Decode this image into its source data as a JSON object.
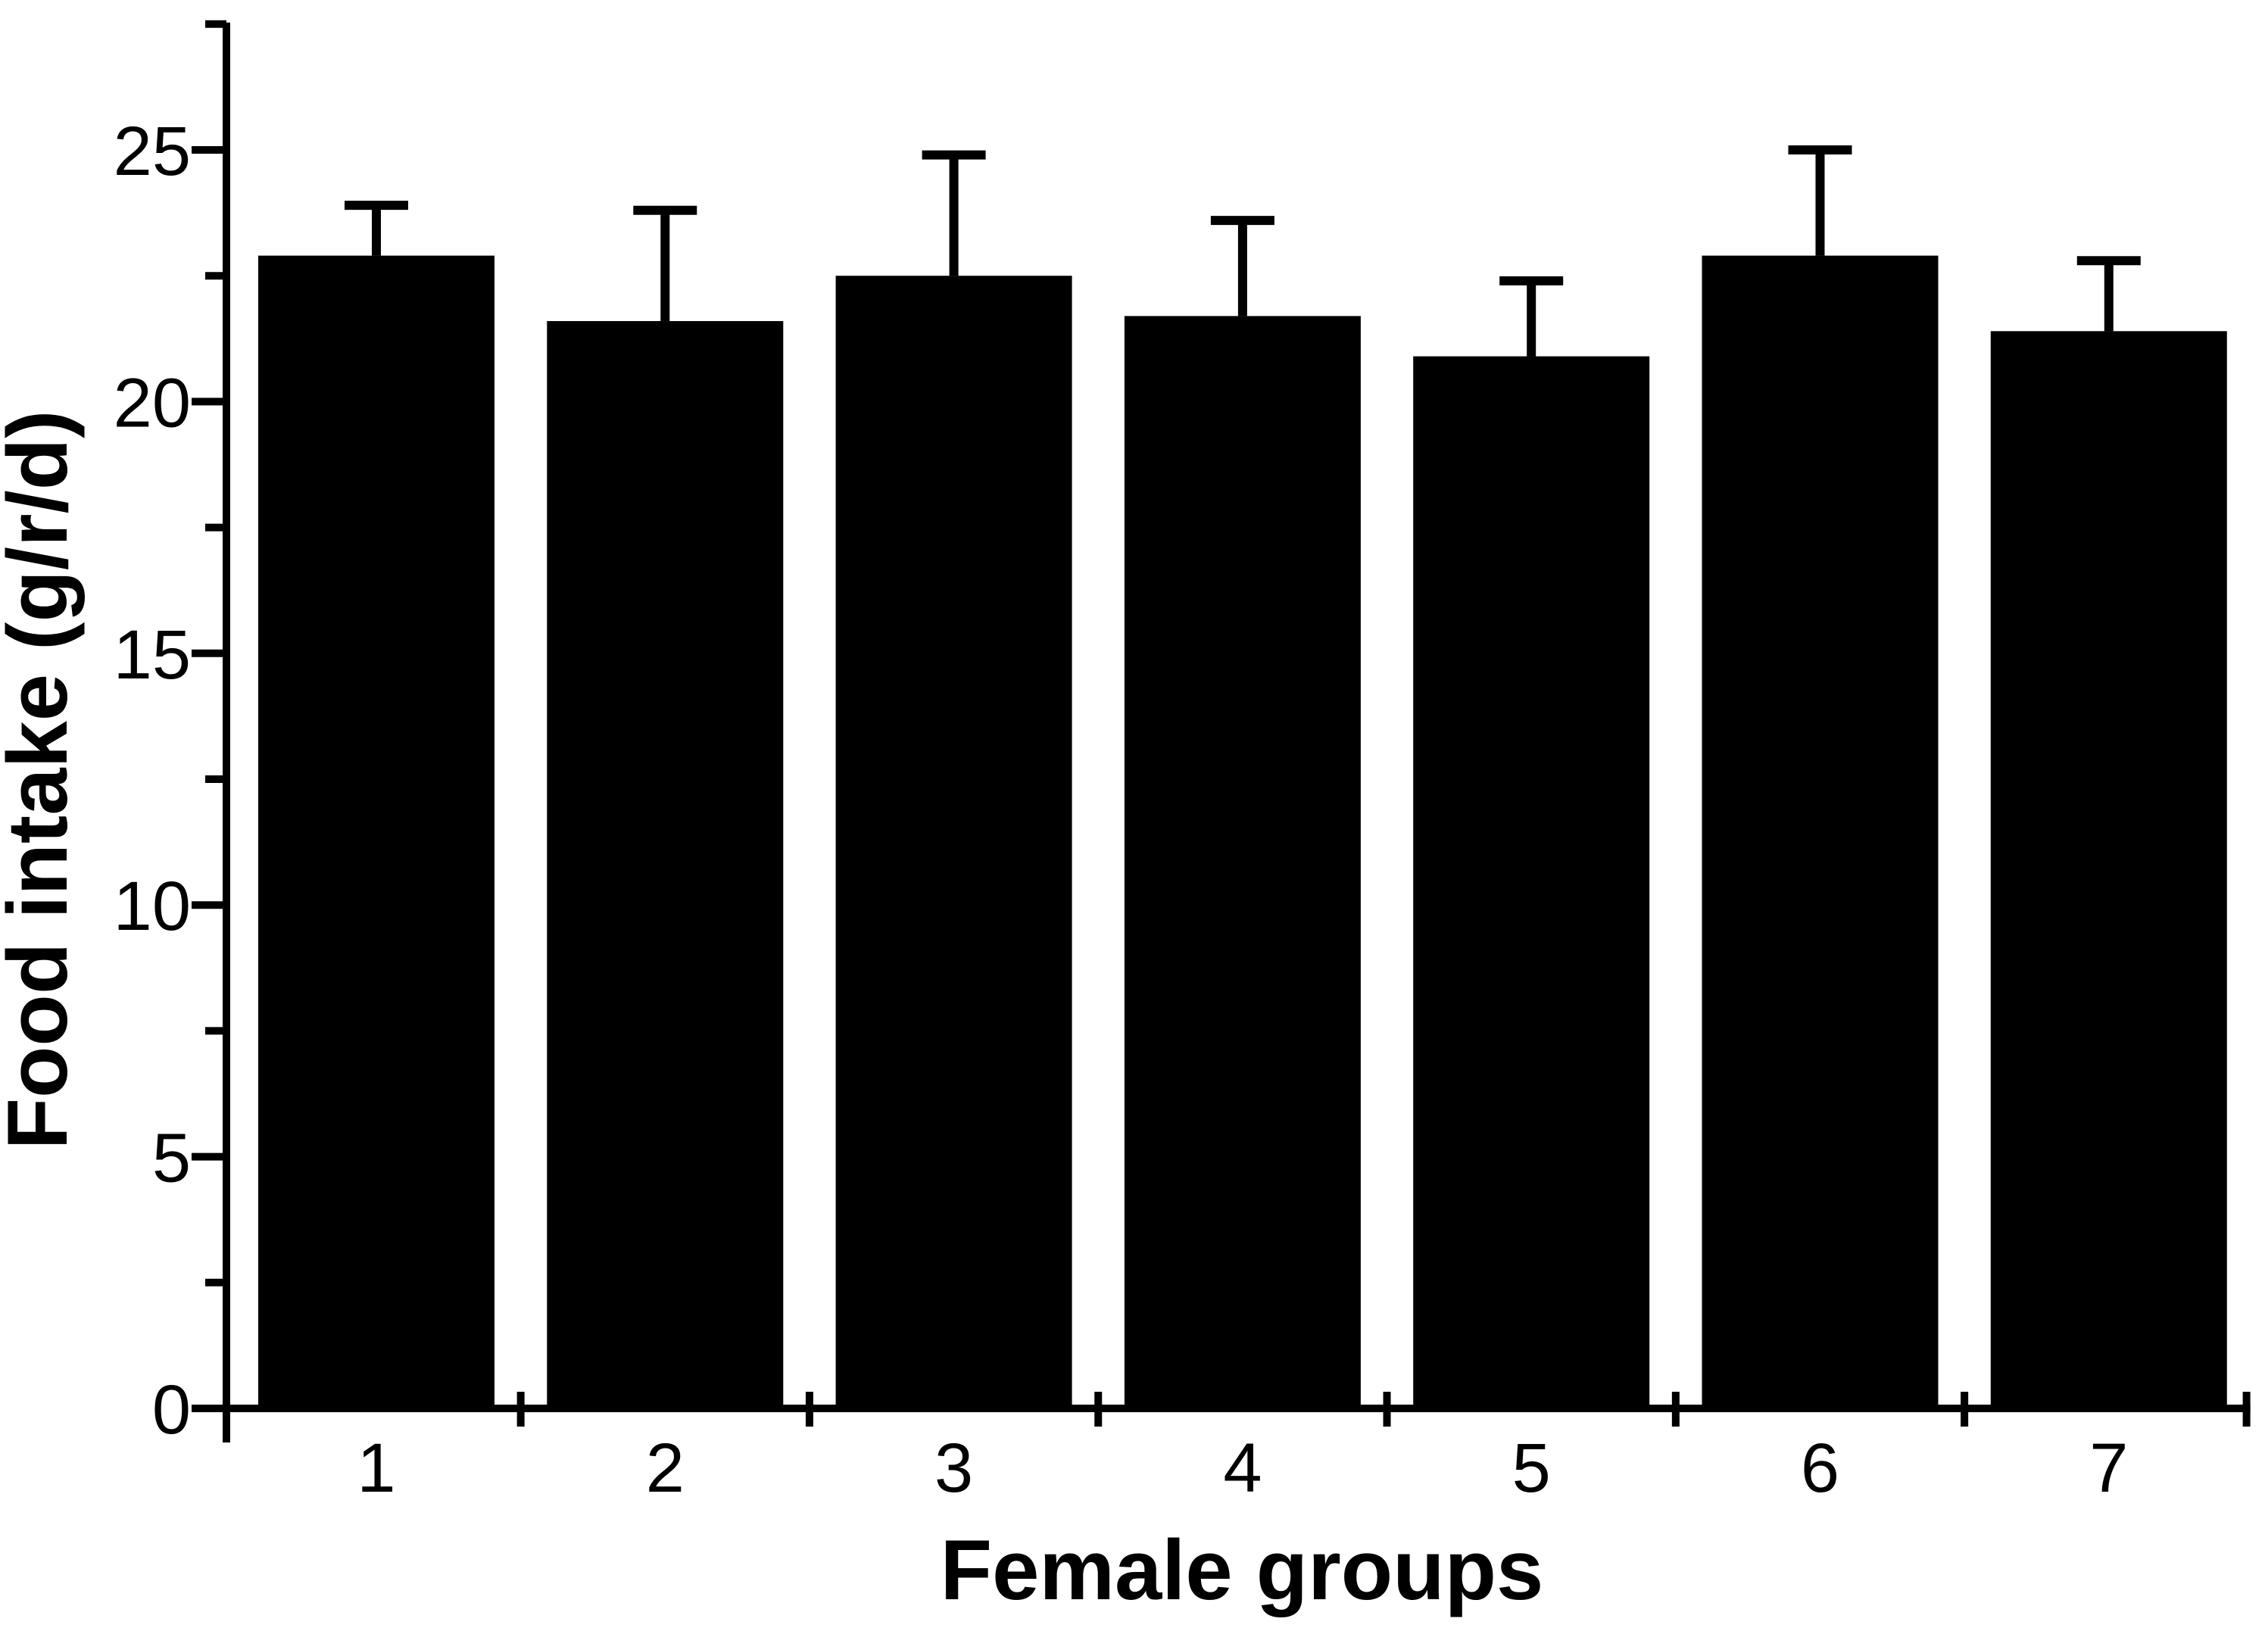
{
  "chart_data": {
    "type": "bar",
    "title": "",
    "xlabel": "Female groups",
    "ylabel": "Food intake (g/r/d)",
    "categories": [
      "1",
      "2",
      "3",
      "4",
      "5",
      "6",
      "7"
    ],
    "series": [
      {
        "name": "Food intake",
        "values": [
          22.9,
          21.6,
          22.5,
          21.7,
          20.9,
          22.9,
          21.4
        ],
        "errors_upper": [
          1.0,
          2.2,
          2.4,
          1.9,
          1.5,
          2.1,
          1.4
        ]
      }
    ],
    "error_bars": "upper-only",
    "bar_color": "#000000",
    "background_color": "#ffffff",
    "axis_color": "#000000",
    "ylim": [
      0,
      27.5
    ],
    "y_major_ticks": [
      0,
      5,
      10,
      15,
      20,
      25
    ],
    "y_minor_tick_step": 2.5,
    "grid": false,
    "legend": null
  }
}
